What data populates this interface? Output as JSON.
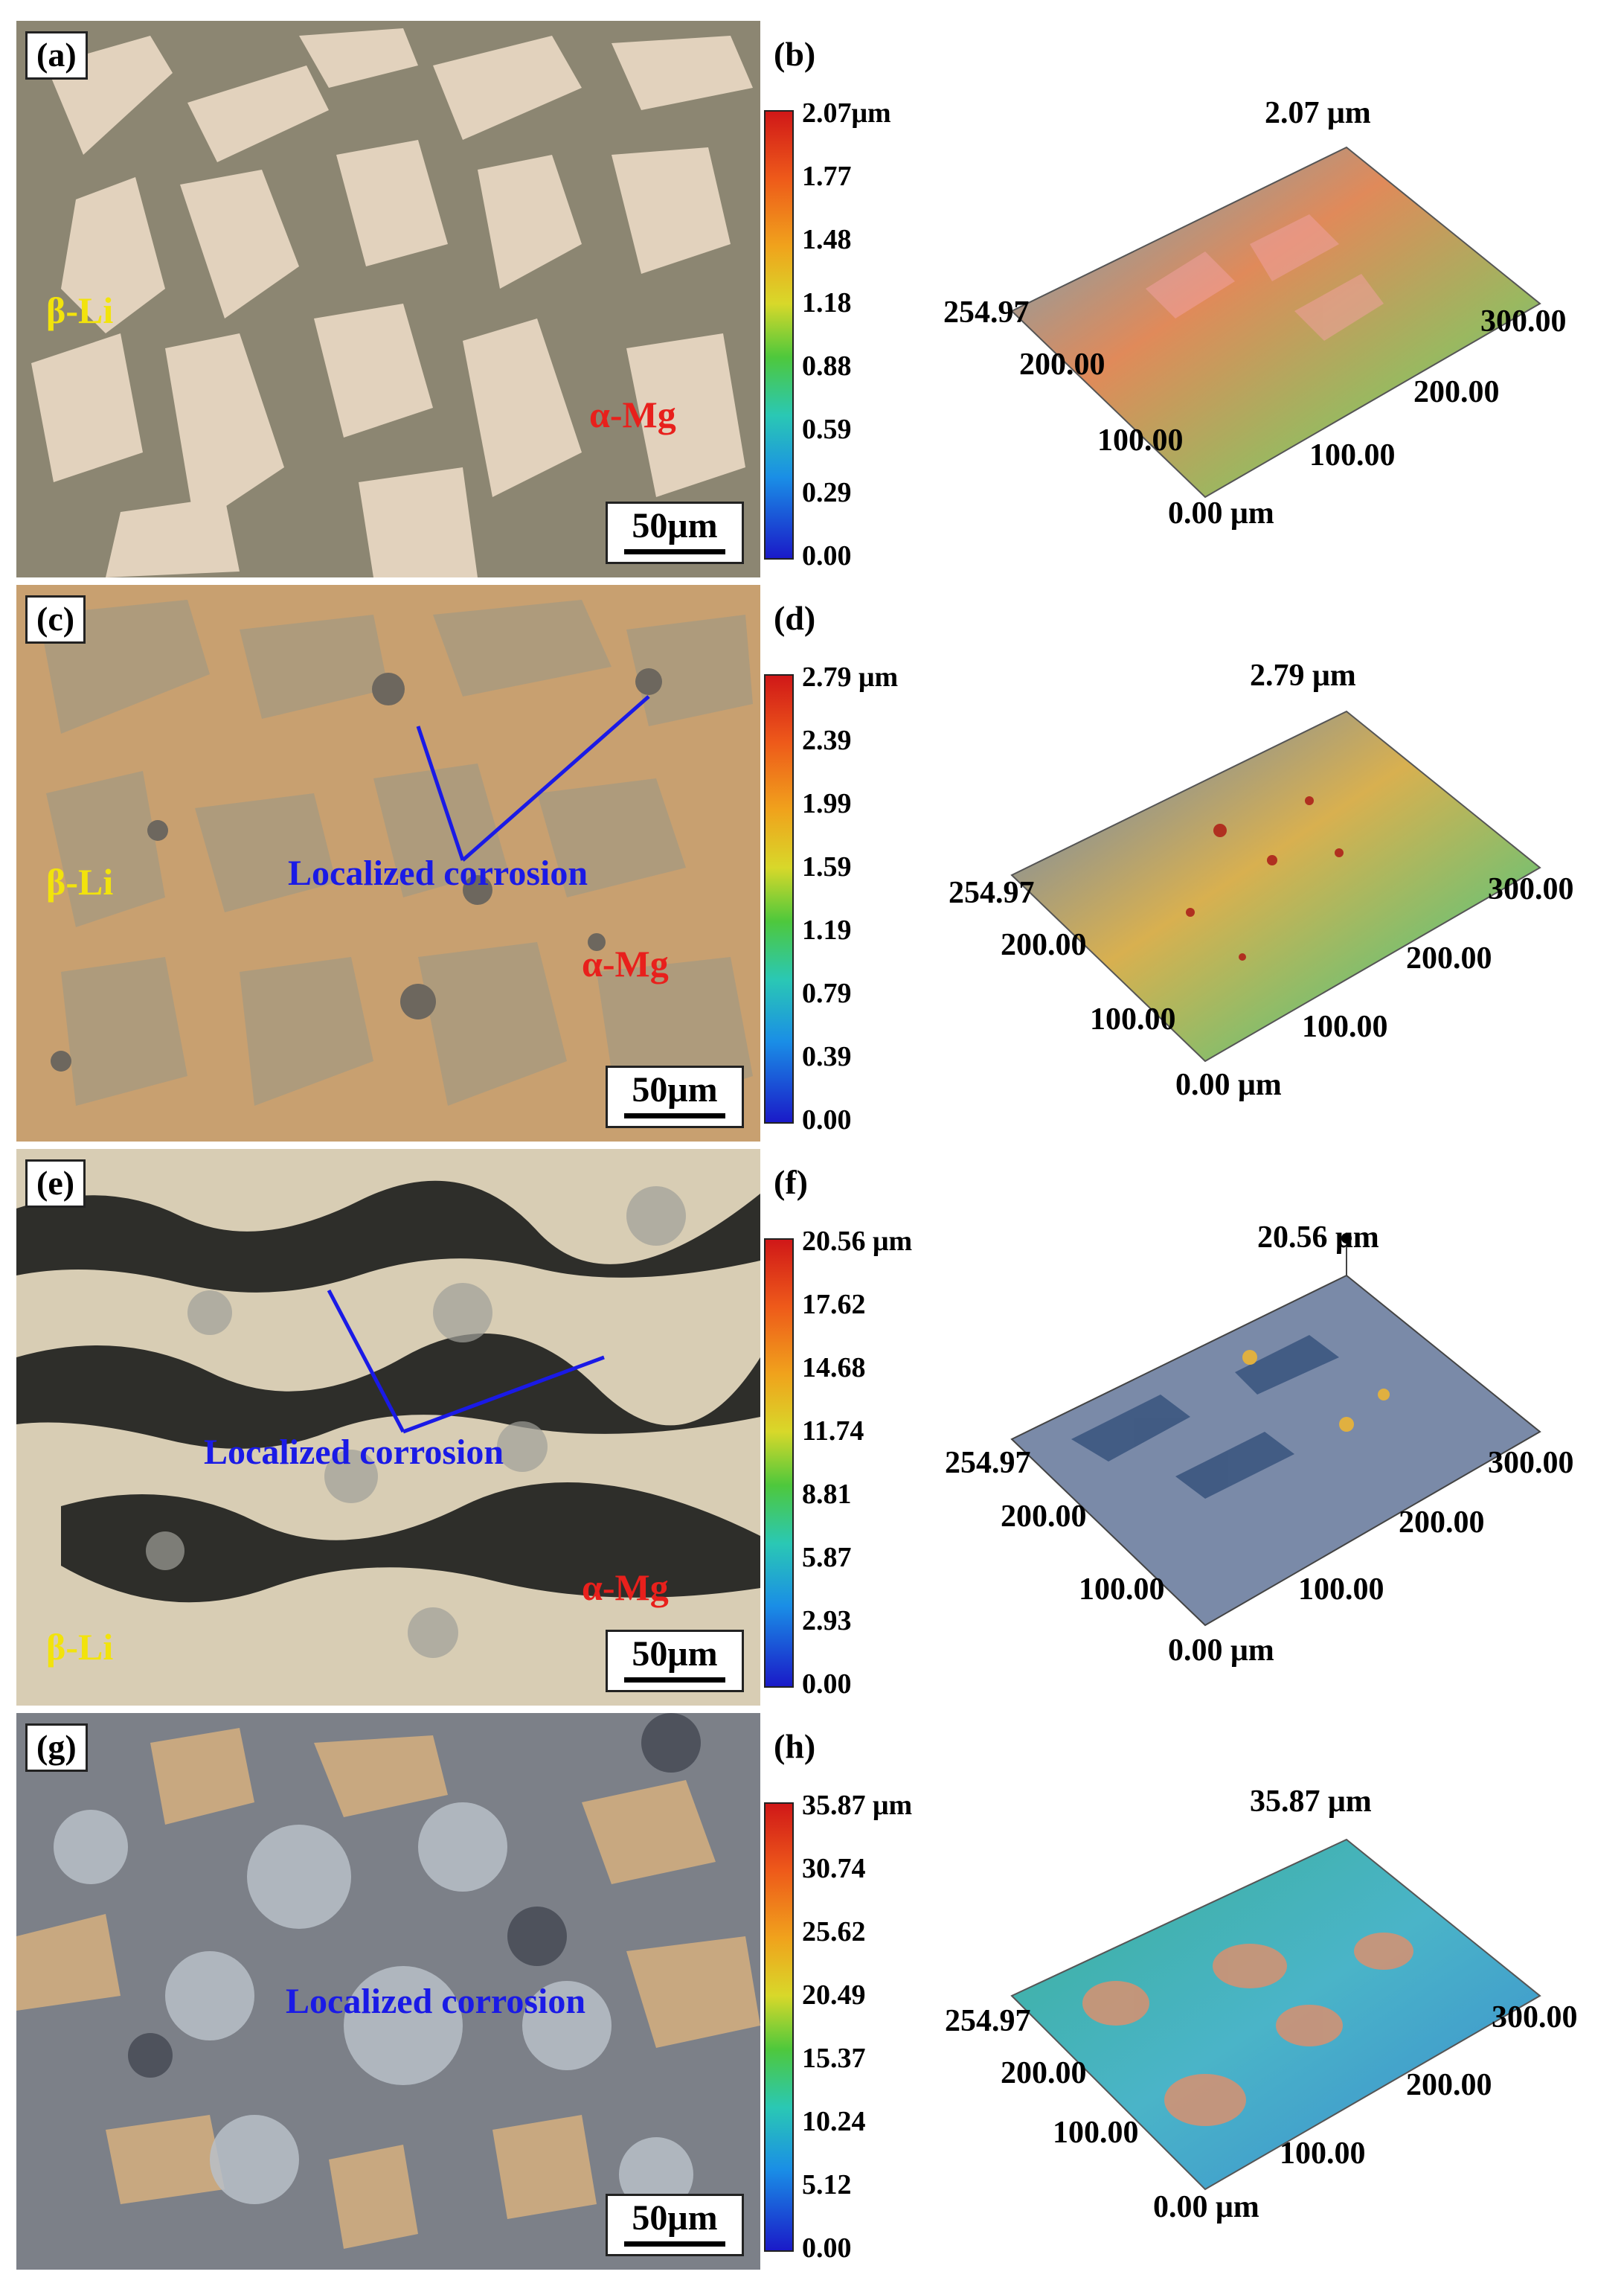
{
  "panels": [
    {
      "micro_label": "(a)",
      "map_label": "(b)",
      "scale": "50μm",
      "beta": "β-Li",
      "alpha": "α-Mg",
      "corrosion": "",
      "colorbar_ticks": [
        "2.07μm",
        "1.77",
        "1.48",
        "1.18",
        "0.88",
        "0.59",
        "0.29",
        "0.00"
      ],
      "top_label": "2.07 μm",
      "axis": {
        "y_max": "254.97",
        "y_mid": "200.00",
        "y_low": "100.00",
        "x_max": "300.00",
        "x_mid": "200.00",
        "x_low": "100.00",
        "origin": "0.00 μm"
      }
    },
    {
      "micro_label": "(c)",
      "map_label": "(d)",
      "scale": "50μm",
      "beta": "β-Li",
      "alpha": "α-Mg",
      "corrosion": "Localized corrosion",
      "colorbar_ticks": [
        "2.79 μm",
        "2.39",
        "1.99",
        "1.59",
        "1.19",
        "0.79",
        "0.39",
        "0.00"
      ],
      "top_label": "2.79 μm",
      "axis": {
        "y_max": "254.97",
        "y_mid": "200.00",
        "y_low": "100.00",
        "x_max": "300.00",
        "x_mid": "200.00",
        "x_low": "100.00",
        "origin": "0.00 μm"
      }
    },
    {
      "micro_label": "(e)",
      "map_label": "(f)",
      "scale": "50μm",
      "beta": "β-Li",
      "alpha": "α-Mg",
      "corrosion": "Localized corrosion",
      "colorbar_ticks": [
        "20.56 μm",
        "17.62",
        "14.68",
        "11.74",
        "8.81",
        "5.87",
        "2.93",
        "0.00"
      ],
      "top_label": "20.56 μm",
      "axis": {
        "y_max": "254.97",
        "y_mid": "200.00",
        "y_low": "100.00",
        "x_max": "300.00",
        "x_mid": "200.00",
        "x_low": "100.00",
        "origin": "0.00 μm"
      }
    },
    {
      "micro_label": "(g)",
      "map_label": "(h)",
      "scale": "50μm",
      "beta": "",
      "alpha": "",
      "corrosion": "Localized corrosion",
      "colorbar_ticks": [
        "35.87 μm",
        "30.74",
        "25.62",
        "20.49",
        "15.37",
        "10.24",
        "5.12",
        "0.00"
      ],
      "top_label": "35.87 μm",
      "axis": {
        "y_max": "254.97",
        "y_mid": "200.00",
        "y_low": "100.00",
        "x_max": "300.00",
        "x_mid": "200.00",
        "x_low": "100.00",
        "origin": "0.00 μm"
      }
    }
  ],
  "colors": {
    "beta_label": "#f2e30c",
    "alpha_label": "#e8201c",
    "corrosion_label": "#1a1ae6"
  }
}
